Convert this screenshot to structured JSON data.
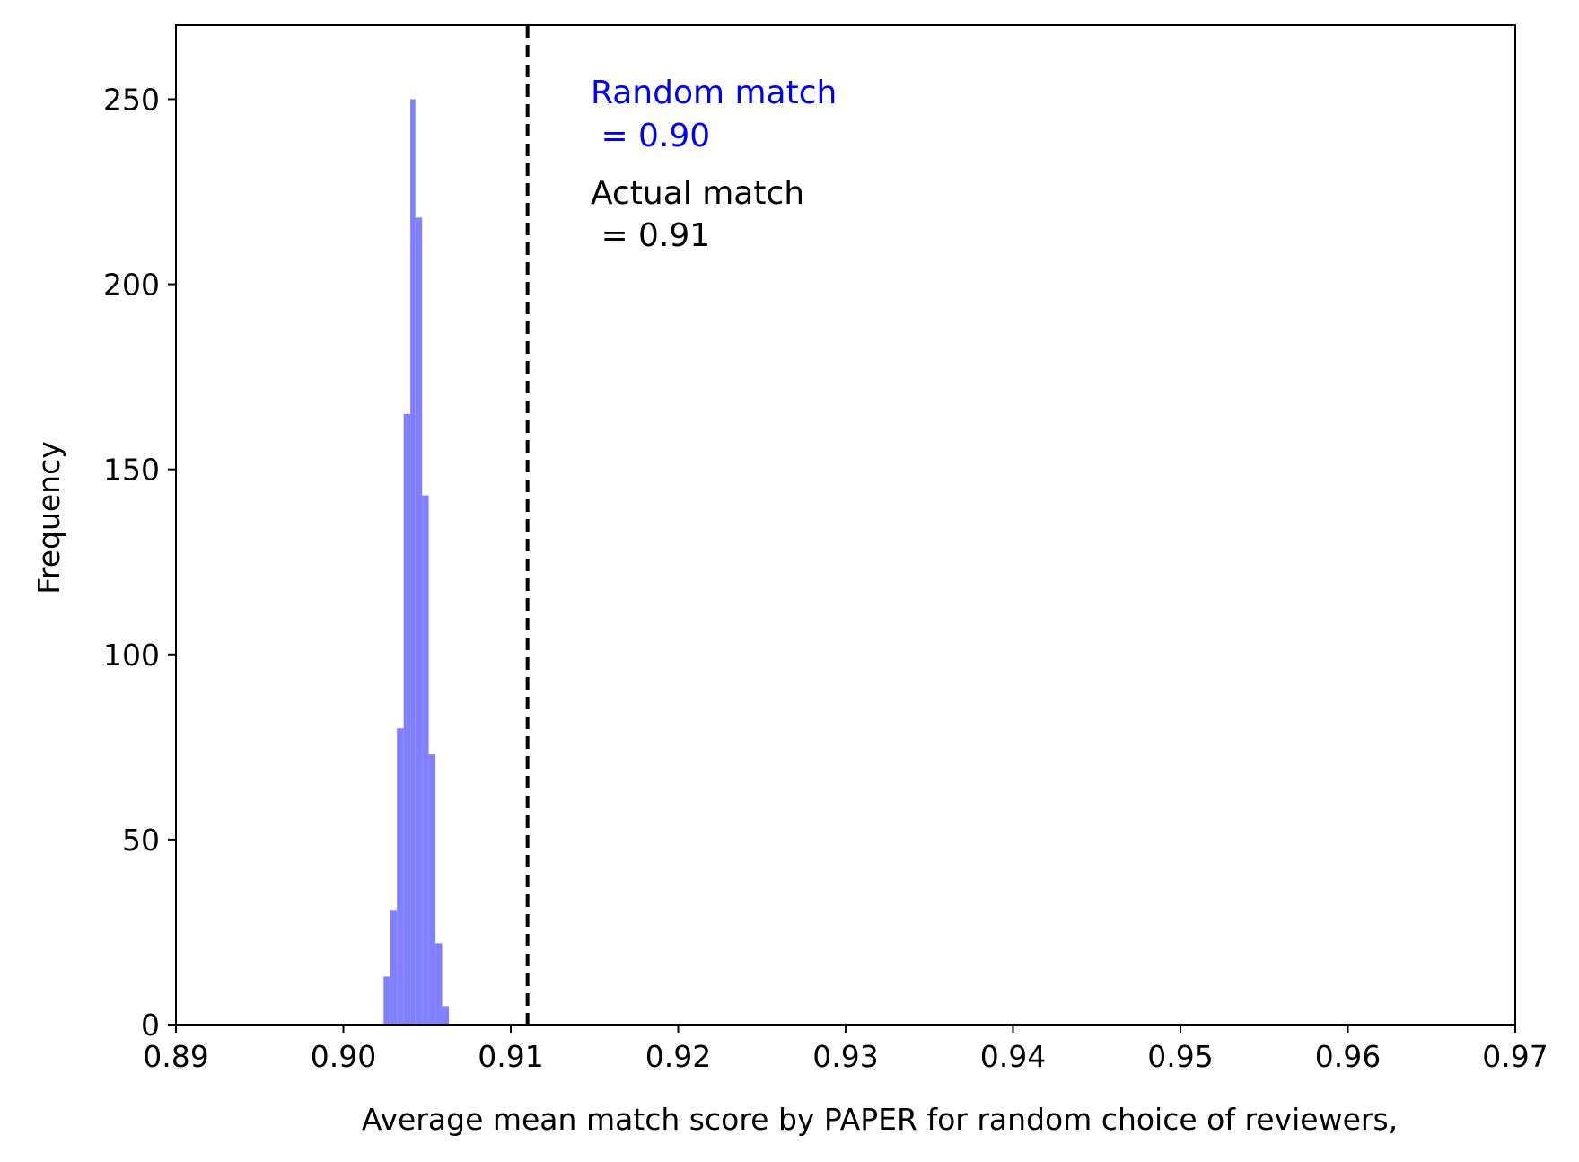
{
  "chart_data": {
    "type": "bar",
    "title": "",
    "xlabel": "Average mean match score by PAPER for random choice of reviewers,",
    "ylabel": "Frequency",
    "xlim": [
      0.89,
      0.97
    ],
    "ylim": [
      0,
      270
    ],
    "xticks": [
      "0.89",
      "0.90",
      "0.91",
      "0.92",
      "0.93",
      "0.94",
      "0.95",
      "0.96",
      "0.97"
    ],
    "yticks": [
      "0",
      "50",
      "100",
      "150",
      "200",
      "250"
    ],
    "grid": false,
    "bar_color": "#8080ff",
    "bins": [
      {
        "x0": 0.9024,
        "x1": 0.9028,
        "count": 13
      },
      {
        "x0": 0.9028,
        "x1": 0.9032,
        "count": 31
      },
      {
        "x0": 0.9032,
        "x1": 0.9036,
        "count": 80
      },
      {
        "x0": 0.9036,
        "x1": 0.904,
        "count": 165
      },
      {
        "x0": 0.904,
        "x1": 0.9043,
        "count": 250
      },
      {
        "x0": 0.9043,
        "x1": 0.9047,
        "count": 218
      },
      {
        "x0": 0.9047,
        "x1": 0.9051,
        "count": 143
      },
      {
        "x0": 0.9051,
        "x1": 0.9055,
        "count": 73
      },
      {
        "x0": 0.9055,
        "x1": 0.9059,
        "count": 22
      },
      {
        "x0": 0.9059,
        "x1": 0.9063,
        "count": 5
      }
    ],
    "actual_match_line": {
      "x": 0.911,
      "style": "dashed",
      "color": "#000000"
    },
    "annotations": [
      {
        "line1": "Random match",
        "line2": " = 0.90",
        "color": "#0000ff"
      },
      {
        "line1": "Actual match",
        "line2": " = 0.91",
        "color": "#000000"
      }
    ]
  }
}
